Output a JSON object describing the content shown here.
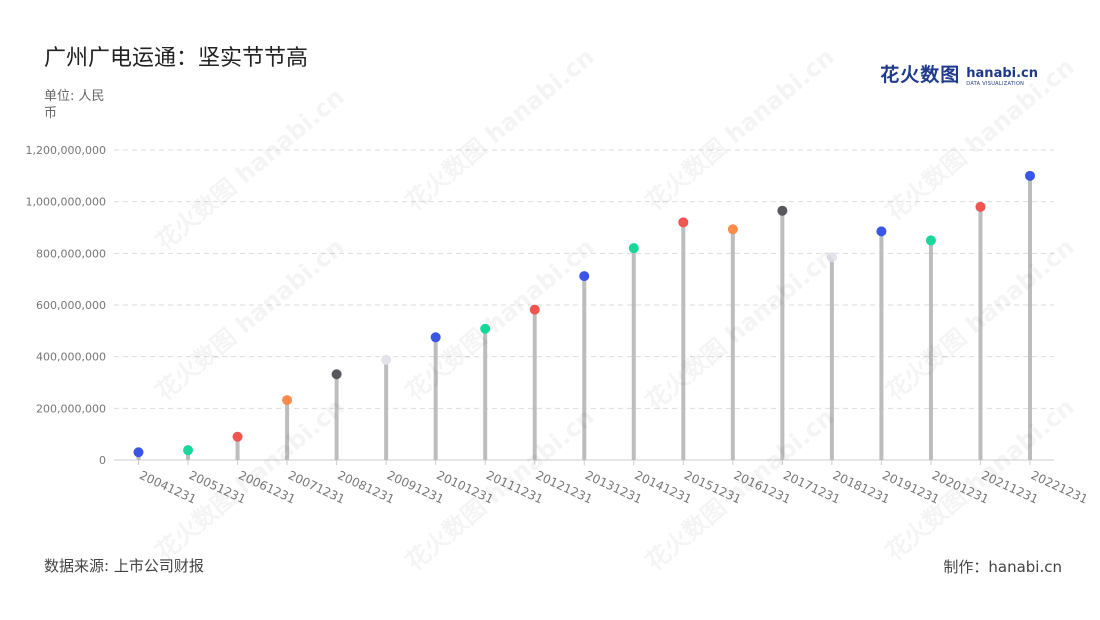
{
  "header": {
    "title": "广州广电运通：坚实节节高",
    "unit": "单位: 人民币"
  },
  "logo": {
    "cn": "花火数图",
    "en": "hanabi.cn",
    "sub": "DATA VISUALIZATION"
  },
  "footer": {
    "source": "数据来源: 上市公司财报",
    "credit": "制作：hanabi.cn"
  },
  "watermark": "花火数图 hanabi.cn",
  "colors": {
    "stem": "#bdbdbd",
    "grid": "#dddddd",
    "axis_text": "#777777"
  },
  "chart_data": {
    "type": "scatter",
    "style": "lollipop",
    "title": "广州广电运通：坚实节节高",
    "ylabel": "单位: 人民币",
    "ylim": [
      0,
      1200000000
    ],
    "yticks": [
      0,
      200000000,
      400000000,
      600000000,
      800000000,
      1000000000,
      1200000000
    ],
    "ytick_labels": [
      "0",
      "200,000,000",
      "400,000,000",
      "600,000,000",
      "800,000,000",
      "1,000,000,000",
      "1,200,000,000"
    ],
    "grid": true,
    "categories": [
      "20041231",
      "20051231",
      "20061231",
      "20071231",
      "20081231",
      "20091231",
      "20101231",
      "20111231",
      "20121231",
      "20131231",
      "20141231",
      "20151231",
      "20161231",
      "20171231",
      "20181231",
      "20191231",
      "20201231",
      "20211231",
      "20221231"
    ],
    "values": [
      30000000,
      38000000,
      90000000,
      232000000,
      332000000,
      388000000,
      475000000,
      508000000,
      582000000,
      712000000,
      820000000,
      920000000,
      893000000,
      965000000,
      785000000,
      885000000,
      850000000,
      980000000,
      1100000000
    ],
    "point_colors": [
      "#3b55e6",
      "#19d69a",
      "#f0554f",
      "#fb8c4c",
      "#58585e",
      "#e3e3ec",
      "#3b55e6",
      "#19d69a",
      "#f0554f",
      "#3b55e6",
      "#19d69a",
      "#f0554f",
      "#fb8c4c",
      "#58585e",
      "#e3e3ec",
      "#3b55e6",
      "#19d69a",
      "#f0554f",
      "#3b55e6"
    ]
  }
}
